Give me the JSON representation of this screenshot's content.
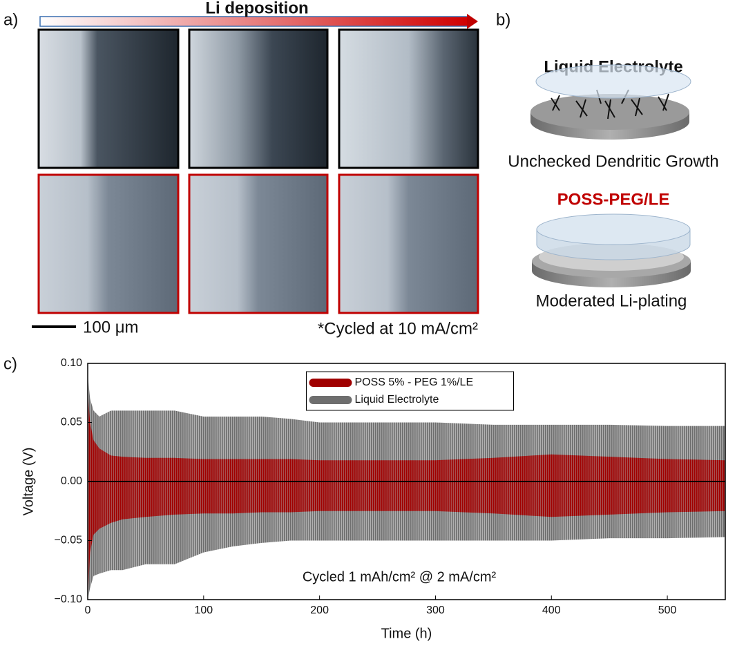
{
  "panel_a": {
    "label": "a)",
    "arrow_label": "Li deposition",
    "scale_bar": "100 μm",
    "note": "*Cycled at 10 mA/cm²"
  },
  "panel_b": {
    "label": "b)",
    "top_title": "Liquid Electrolyte",
    "top_caption": "Unchecked Dendritic Growth",
    "bottom_title": "POSS-PEG/LE",
    "bottom_caption": "Moderated Li-plating"
  },
  "panel_c": {
    "label": "c)"
  },
  "chart_data": {
    "type": "band",
    "xlabel": "Time (h)",
    "ylabel": "Voltage (V)",
    "annotation": "Cycled 1 mAh/cm² @ 2 mA/cm²",
    "x": [
      0,
      2,
      5,
      10,
      20,
      30,
      50,
      75,
      100,
      125,
      150,
      175,
      200,
      250,
      300,
      350,
      400,
      450,
      500,
      550
    ],
    "series": [
      {
        "name": "Liquid Electrolyte",
        "color": "#6e6e6e",
        "values": [
          0.09,
          0.07,
          0.06,
          0.055,
          0.06,
          0.06,
          0.06,
          0.06,
          0.055,
          0.055,
          0.055,
          0.053,
          0.05,
          0.05,
          0.05,
          0.048,
          0.048,
          0.048,
          0.047,
          0.047
        ],
        "low": [
          -0.1,
          -0.09,
          -0.08,
          -0.078,
          -0.075,
          -0.075,
          -0.07,
          -0.07,
          -0.06,
          -0.055,
          -0.052,
          -0.05,
          -0.05,
          -0.05,
          -0.05,
          -0.05,
          -0.05,
          -0.048,
          -0.048,
          -0.047
        ]
      },
      {
        "name": "POSS 5% - PEG 1%/LE",
        "color": "#a00000",
        "values": [
          0.075,
          0.05,
          0.035,
          0.028,
          0.022,
          0.021,
          0.02,
          0.02,
          0.019,
          0.019,
          0.019,
          0.019,
          0.018,
          0.018,
          0.018,
          0.02,
          0.023,
          0.021,
          0.019,
          0.018
        ],
        "low": [
          -0.1,
          -0.06,
          -0.045,
          -0.04,
          -0.035,
          -0.032,
          -0.03,
          -0.028,
          -0.027,
          -0.027,
          -0.026,
          -0.026,
          -0.025,
          -0.025,
          -0.025,
          -0.027,
          -0.03,
          -0.028,
          -0.026,
          -0.025
        ]
      }
    ],
    "xlim": [
      0,
      550
    ],
    "xticks": [
      0,
      100,
      200,
      300,
      400,
      500
    ],
    "ylim": [
      -0.1,
      0.1
    ],
    "yticks": [
      {
        "value": -0.1,
        "label": "−0.10"
      },
      {
        "value": -0.05,
        "label": "−0.05"
      },
      {
        "value": 0,
        "label": "0.00"
      },
      {
        "value": 0.05,
        "label": "0.05"
      },
      {
        "value": 0.1,
        "label": "0.10"
      }
    ],
    "legend": "top-center"
  }
}
